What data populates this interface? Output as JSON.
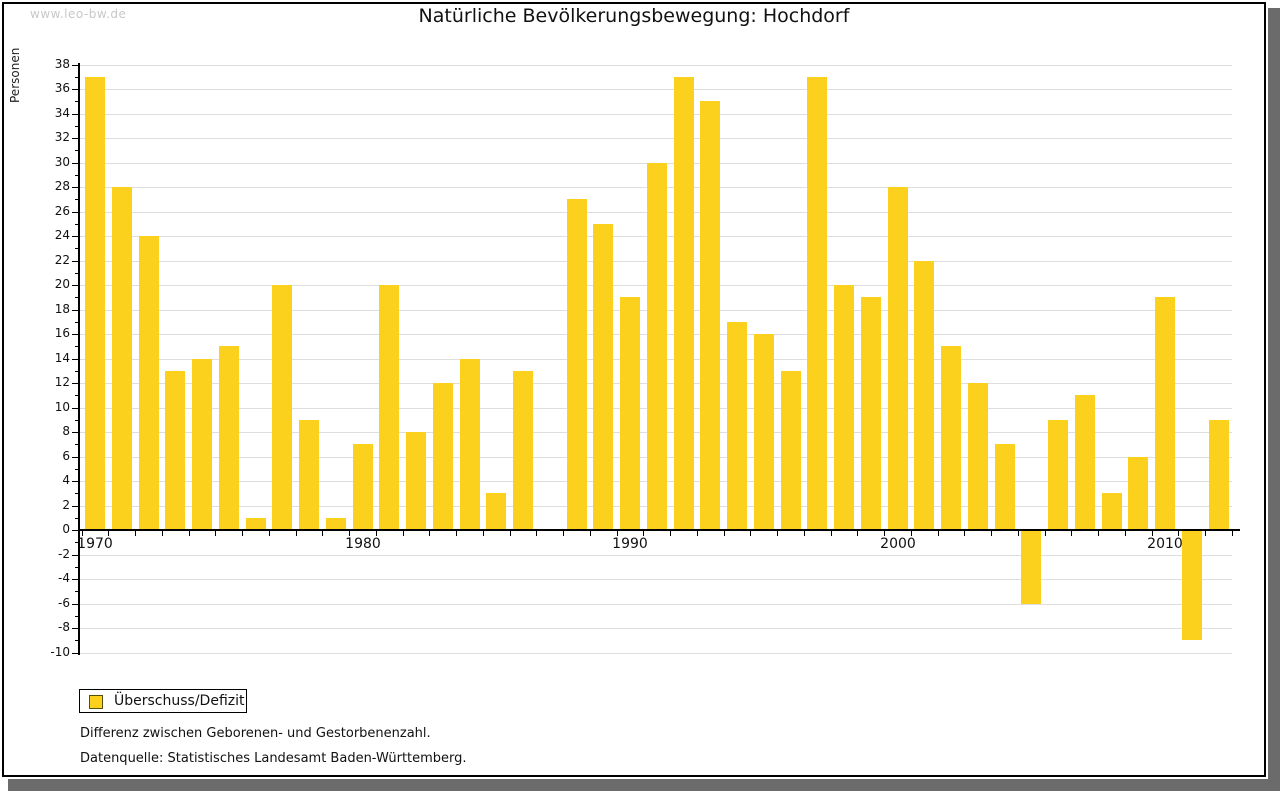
{
  "watermark": "www.leo-bw.de",
  "title": "Natürliche Bevölkerungsbewegung: Hochdorf",
  "legend": {
    "label": "Überschuss/Defizit"
  },
  "footnotes": [
    "Differenz zwischen Geborenen- und Gestorbenenzahl.",
    "Datenquelle: Statistisches Landesamt Baden-Württemberg."
  ],
  "colors": {
    "bar": "#FBD11E",
    "grid": "#DEDEDE",
    "axis": "#000000",
    "watermark": "#C8C8C8",
    "shadow": "#6B6B6B",
    "background": "#FFFFFF"
  },
  "chart_data": {
    "type": "bar",
    "title": "Natürliche Bevölkerungsbewegung: Hochdorf",
    "xlabel": "",
    "ylabel": "Personen",
    "ylim": [
      -10,
      38
    ],
    "ytick_step": 2,
    "yminor_step": 1,
    "grid": "horizontal",
    "legend_position": "bottom-left",
    "xticks": [
      1970,
      1980,
      1990,
      2000,
      2010
    ],
    "x": [
      1970,
      1971,
      1972,
      1973,
      1974,
      1975,
      1976,
      1977,
      1978,
      1979,
      1980,
      1981,
      1982,
      1983,
      1984,
      1985,
      1986,
      1987,
      1988,
      1989,
      1990,
      1991,
      1992,
      1993,
      1994,
      1995,
      1996,
      1997,
      1998,
      1999,
      2000,
      2001,
      2002,
      2003,
      2004,
      2005,
      2006,
      2007,
      2008,
      2009,
      2010,
      2011,
      2012
    ],
    "series": [
      {
        "name": "Überschuss/Defizit",
        "values": [
          37,
          28,
          24,
          13,
          14,
          15,
          1,
          20,
          9,
          1,
          7,
          20,
          8,
          12,
          14,
          3,
          13,
          0,
          27,
          25,
          19,
          30,
          37,
          35,
          17,
          16,
          13,
          37,
          20,
          19,
          28,
          22,
          15,
          12,
          7,
          -6,
          9,
          11,
          3,
          6,
          19,
          -9,
          9
        ]
      }
    ]
  }
}
